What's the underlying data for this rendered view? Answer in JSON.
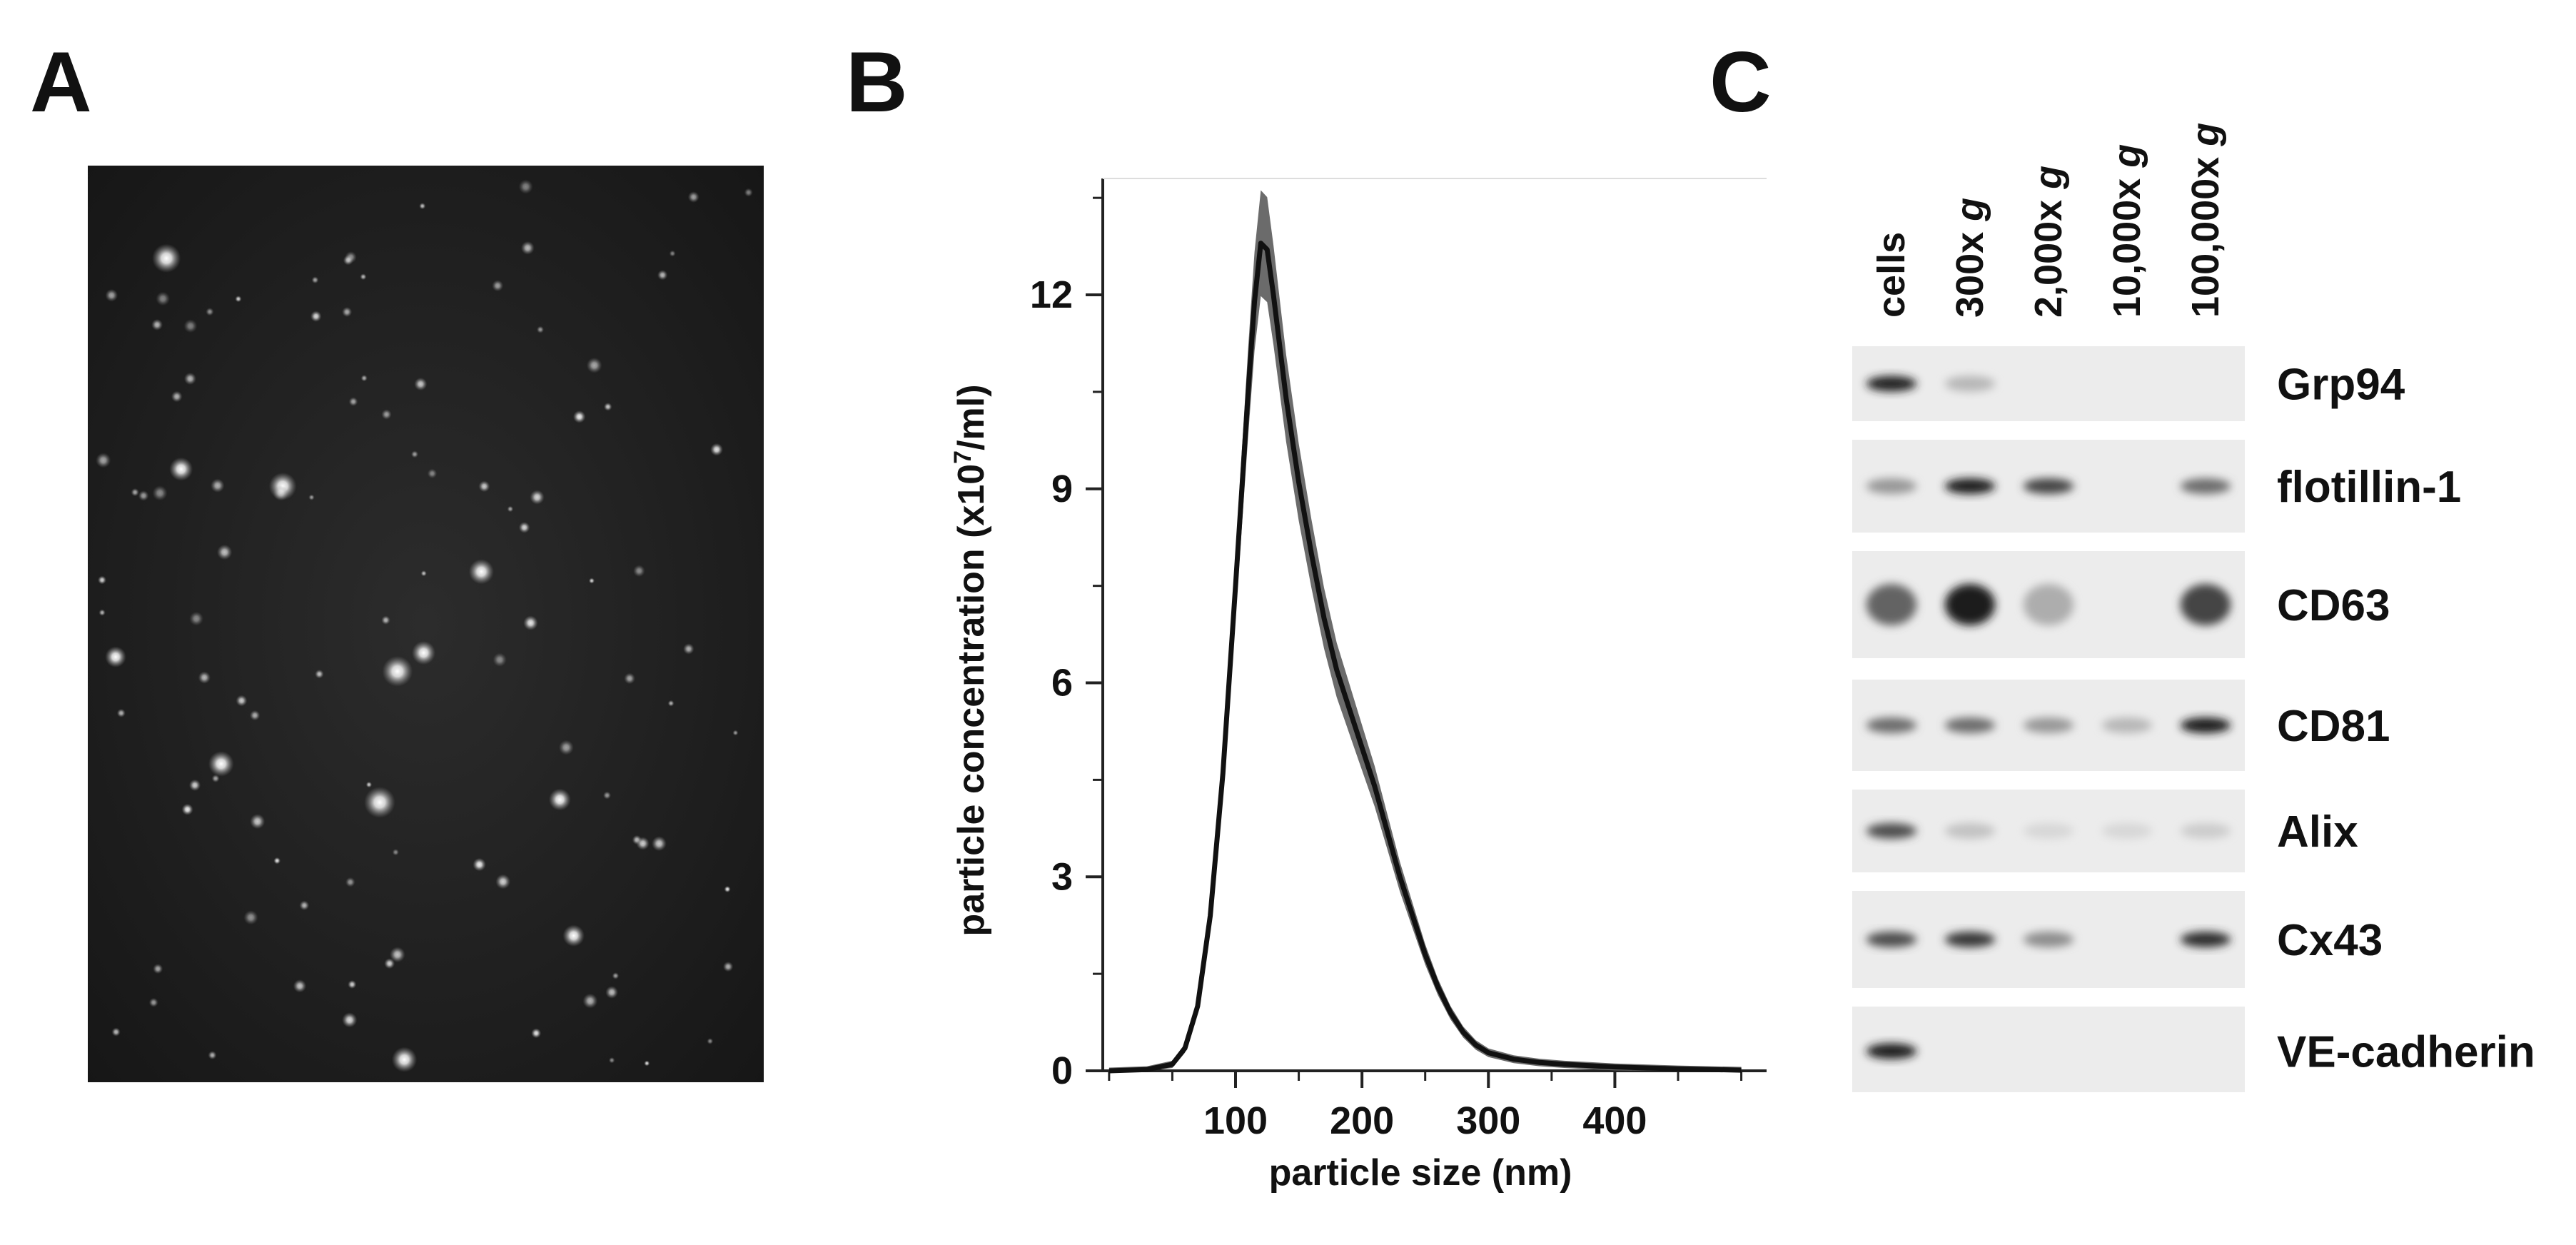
{
  "panels": {
    "a": "A",
    "b": "B",
    "c": "C"
  },
  "chart_data": {
    "type": "line",
    "xlabel": "particle size (nm)",
    "ylabel_main": "particle concentration (x10",
    "ylabel_sup": "7",
    "ylabel_end": "/ml)",
    "xlim": [
      -5,
      520
    ],
    "ylim": [
      0,
      13.8
    ],
    "xticks": [
      100,
      200,
      300,
      400
    ],
    "yticks": [
      0,
      3,
      6,
      9,
      12
    ],
    "series": [
      {
        "x": [
          0,
          30,
          50,
          60,
          70,
          80,
          90,
          100,
          110,
          115,
          120,
          125,
          130,
          140,
          150,
          160,
          170,
          180,
          190,
          200,
          210,
          220,
          230,
          240,
          250,
          260,
          270,
          280,
          290,
          300,
          320,
          340,
          360,
          380,
          400,
          450,
          500
        ],
        "y": [
          0,
          0.02,
          0.1,
          0.35,
          1.0,
          2.4,
          4.6,
          7.5,
          10.5,
          11.9,
          12.8,
          12.7,
          12.0,
          10.4,
          9.1,
          8.0,
          7.0,
          6.2,
          5.6,
          5.0,
          4.4,
          3.7,
          3.0,
          2.4,
          1.8,
          1.3,
          0.9,
          0.6,
          0.4,
          0.28,
          0.18,
          0.13,
          0.1,
          0.08,
          0.06,
          0.03,
          0.01
        ]
      }
    ]
  },
  "blot": {
    "lanes": [
      "cells",
      "300x ",
      "2,000x ",
      "10,000x ",
      "100,000x "
    ],
    "g": "g",
    "bands": [
      "Grp94",
      "flotillin-1",
      "CD63",
      "CD81",
      "Alix",
      "Cx43",
      "VE-cadherin"
    ],
    "intensity": [
      [
        0.9,
        0.2,
        0,
        0,
        0
      ],
      [
        0.35,
        0.95,
        0.75,
        0,
        0.55
      ],
      [
        0.6,
        0.95,
        0.25,
        0,
        0.75
      ],
      [
        0.55,
        0.55,
        0.35,
        0.2,
        0.95
      ],
      [
        0.7,
        0.15,
        0.05,
        0.05,
        0.1
      ],
      [
        0.7,
        0.8,
        0.4,
        0,
        0.85
      ],
      [
        0.95,
        0,
        0,
        0,
        0
      ]
    ]
  }
}
